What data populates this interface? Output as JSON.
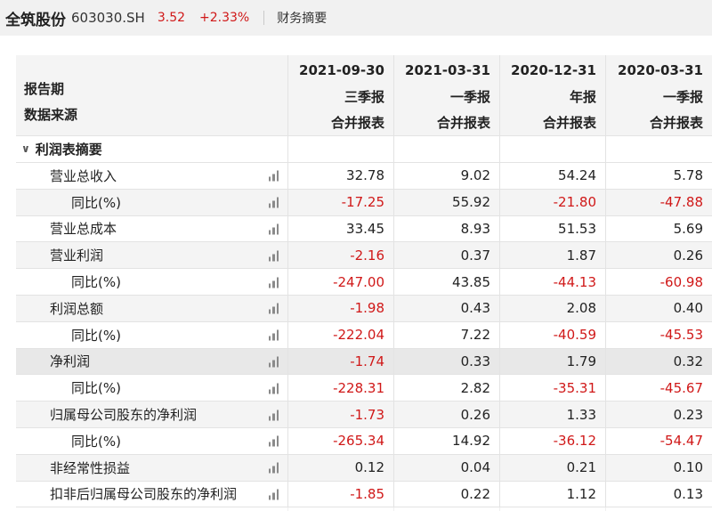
{
  "header": {
    "stock_name": "全筑股份",
    "stock_code": "603030.SH",
    "price": "3.52",
    "change": "+2.33%",
    "section": "财务摘要"
  },
  "columns": [
    {
      "date": "2021-09-30",
      "period": "三季报",
      "source": "合并报表"
    },
    {
      "date": "2021-03-31",
      "period": "一季报",
      "source": "合并报表"
    },
    {
      "date": "2020-12-31",
      "period": "年报",
      "source": "合并报表"
    },
    {
      "date": "2020-03-31",
      "period": "一季报",
      "source": "合并报表"
    }
  ],
  "row_labels": {
    "period": "报告期",
    "source": "数据来源"
  },
  "group": {
    "title": "利润表摘要",
    "icon": "chevron-down-icon"
  },
  "rows": [
    {
      "label": "营业总收入",
      "level": 1,
      "values": [
        "32.78",
        "9.02",
        "54.24",
        "5.78"
      ]
    },
    {
      "label": "同比(%)",
      "level": 2,
      "values": [
        "-17.25",
        "55.92",
        "-21.80",
        "-47.88"
      ]
    },
    {
      "label": "营业总成本",
      "level": 1,
      "values": [
        "33.45",
        "8.93",
        "51.53",
        "5.69"
      ]
    },
    {
      "label": "营业利润",
      "level": 1,
      "values": [
        "-2.16",
        "0.37",
        "1.87",
        "0.26"
      ]
    },
    {
      "label": "同比(%)",
      "level": 2,
      "values": [
        "-247.00",
        "43.85",
        "-44.13",
        "-60.98"
      ]
    },
    {
      "label": "利润总额",
      "level": 1,
      "values": [
        "-1.98",
        "0.43",
        "2.08",
        "0.40"
      ]
    },
    {
      "label": "同比(%)",
      "level": 2,
      "values": [
        "-222.04",
        "7.22",
        "-40.59",
        "-45.53"
      ]
    },
    {
      "label": "净利润",
      "level": 1,
      "values": [
        "-1.74",
        "0.33",
        "1.79",
        "0.32"
      ]
    },
    {
      "label": "同比(%)",
      "level": 2,
      "values": [
        "-228.31",
        "2.82",
        "-35.31",
        "-45.67"
      ]
    },
    {
      "label": "归属母公司股东的净利润",
      "level": 1,
      "values": [
        "-1.73",
        "0.26",
        "1.33",
        "0.23"
      ]
    },
    {
      "label": "同比(%)",
      "level": 2,
      "values": [
        "-265.34",
        "14.92",
        "-36.12",
        "-54.47"
      ]
    },
    {
      "label": "非经常性损益",
      "level": 1,
      "values": [
        "0.12",
        "0.04",
        "0.21",
        "0.10"
      ]
    },
    {
      "label": "扣非后归属母公司股东的净利润",
      "level": 1,
      "values": [
        "-1.85",
        "0.22",
        "1.12",
        "0.13"
      ]
    }
  ],
  "highlight_row_index": 7,
  "colors": {
    "negative": "#d01818",
    "positive": "#222222",
    "header_bg": "#f4f4f4",
    "row_shade": "#f4f4f4",
    "highlight": "#e8e8e8"
  },
  "row_icon": "bar-chart-icon"
}
